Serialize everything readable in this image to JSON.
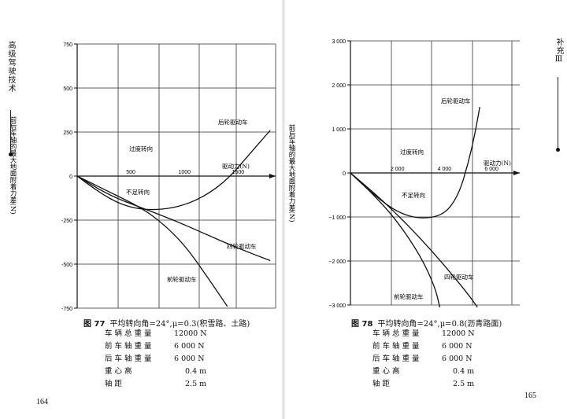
{
  "left_page": {
    "side_title": "高级驾驶技术",
    "page_number": "164",
    "figure_label": "图 77",
    "caption": "平均转向角=24°,μ=0.3(积雪路、土路)",
    "specs": [
      {
        "label": "车辆总重量",
        "value": "12000 N"
      },
      {
        "label": "前车轴重量",
        "value": "6 000 N"
      },
      {
        "label": "后车轴重量",
        "value": "6 000 N"
      },
      {
        "label": "重心高",
        "value": "0.4 m"
      },
      {
        "label": "轴距",
        "value": "2.5 m"
      }
    ]
  },
  "right_page": {
    "side_title": "补充Ⅲ",
    "page_number": "165",
    "figure_label": "图 78",
    "caption": "平均转向角=24°,μ=0.8(沥青路面)",
    "specs": [
      {
        "label": "车辆总重量",
        "value": "12000 N"
      },
      {
        "label": "前车轴重量",
        "value": "6 000 N"
      },
      {
        "label": "后车轴重量",
        "value": "6 000 N"
      },
      {
        "label": "重心高",
        "value": "0.4 m"
      },
      {
        "label": "轴距",
        "value": "2.5 m"
      }
    ]
  },
  "chart_data": [
    {
      "type": "line",
      "ylabel": "前后车轴的最大地面附着力差(N)",
      "xlabel": "驱动力(N)",
      "xlim": [
        0,
        1850
      ],
      "ylim": [
        -750,
        750
      ],
      "x_ticks": [
        500,
        1000,
        1500
      ],
      "x_tick_labels": [
        "500",
        "1000",
        "1500"
      ],
      "y_ticks": [
        750,
        500,
        250,
        0,
        -250,
        -500,
        -750
      ],
      "y_tick_labels": [
        "750",
        "500",
        "250",
        "0",
        "-250",
        "-500",
        "-750"
      ],
      "grid": true,
      "annotations": [
        "过度转向",
        "不足转向"
      ],
      "series": [
        {
          "name": "后轮驱动车",
          "x": [
            0,
            200,
            400,
            600,
            800,
            1000,
            1200,
            1400,
            1600,
            1800
          ],
          "y": [
            0,
            -90,
            -160,
            -190,
            -190,
            -165,
            -110,
            -20,
            120,
            260
          ]
        },
        {
          "name": "四轮驱动车",
          "x": [
            0,
            300,
            600,
            900,
            1200,
            1500,
            1800
          ],
          "y": [
            0,
            -110,
            -180,
            -250,
            -330,
            -410,
            -480
          ]
        },
        {
          "name": "前轮驱动车",
          "x": [
            0,
            300,
            600,
            800,
            1000,
            1200,
            1400
          ],
          "y": [
            0,
            -90,
            -180,
            -270,
            -390,
            -560,
            -740
          ]
        }
      ]
    },
    {
      "type": "line",
      "ylabel": "前后车轴的最大地面附着力差(N)",
      "xlabel": "驱动力(N)",
      "xlim": [
        0,
        7200
      ],
      "ylim": [
        -3000,
        3000
      ],
      "x_ticks": [
        2000,
        4000,
        6000
      ],
      "x_tick_labels": [
        "2 000",
        "4 000",
        "6 000"
      ],
      "y_ticks": [
        3000,
        2000,
        1000,
        0,
        -1000,
        -2000,
        -3000
      ],
      "y_tick_labels": [
        "3 000",
        "2 000",
        "1 000",
        "0",
        "−1 000",
        "−2 000",
        "−3 000"
      ],
      "grid": true,
      "annotations": [
        "过度转向",
        "不足转向"
      ],
      "series": [
        {
          "name": "后轮驱动车",
          "x": [
            0,
            1000,
            2000,
            3000,
            4000,
            4600,
            5000,
            5300,
            5500
          ],
          "y": [
            0,
            -500,
            -900,
            -1050,
            -950,
            -500,
            200,
            900,
            1500
          ]
        },
        {
          "name": "四轮驱动车",
          "x": [
            0,
            1000,
            2000,
            3000,
            4000,
            5000,
            5400
          ],
          "y": [
            0,
            -450,
            -950,
            -1500,
            -2100,
            -2750,
            -3050
          ]
        },
        {
          "name": "前轮驱动车",
          "x": [
            0,
            1000,
            2000,
            3000,
            3600,
            3800
          ],
          "y": [
            0,
            -500,
            -1100,
            -1900,
            -2600,
            -3050
          ]
        }
      ]
    }
  ]
}
